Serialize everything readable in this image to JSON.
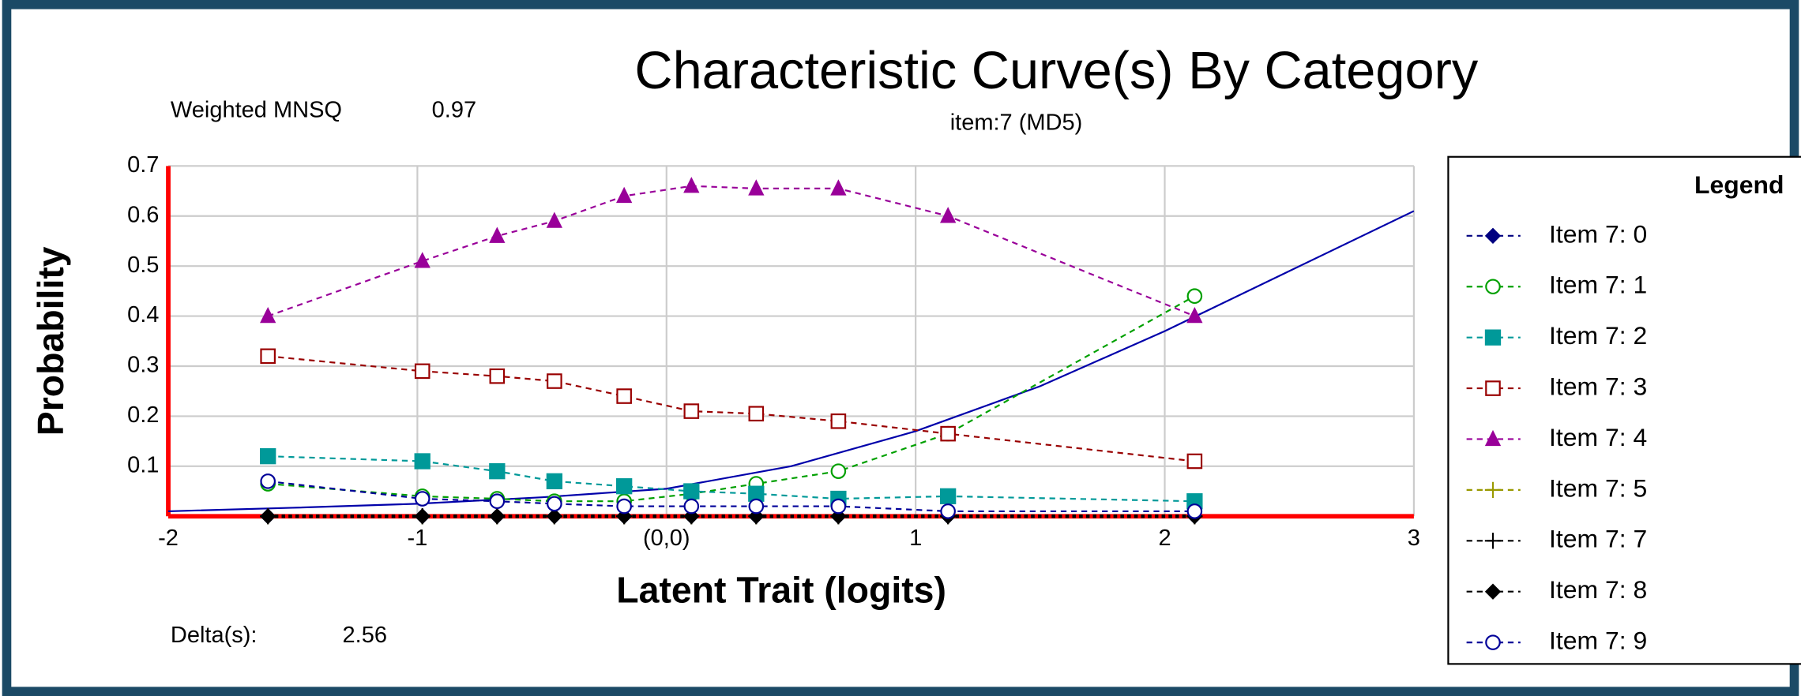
{
  "chart_data": {
    "type": "line",
    "title": "Characteristic Curve(s) By Category",
    "subtitle": "item:7 (MD5)",
    "fit_label": "Weighted MNSQ",
    "fit_value": "0.97",
    "delta_label": "Delta(s):",
    "delta_value": "2.56",
    "x_label": "Latent Trait (logits)",
    "y_label": "Probability",
    "legend_title": "Legend",
    "legend": "right",
    "grid": true,
    "xlim": [
      -2,
      3
    ],
    "ylim": [
      0,
      0.7
    ],
    "xticks": [
      -2,
      -1,
      {
        "value": 0,
        "label": "(0,0)"
      },
      1,
      2,
      3
    ],
    "yticks": [
      0.1,
      0.2,
      0.3,
      0.4,
      0.5,
      0.6,
      0.7
    ],
    "x": [
      -1.6,
      -0.98,
      -0.68,
      -0.45,
      -0.17,
      0.1,
      0.36,
      0.69,
      1.13,
      2.12
    ],
    "series": [
      {
        "name": "Item 7: 0",
        "color": "#000080",
        "marker": "diamond",
        "values": [
          0,
          0,
          0,
          0,
          0,
          0,
          0,
          0,
          0,
          0
        ]
      },
      {
        "name": "Item 7: 1",
        "color": "#00a000",
        "marker": "circle-open",
        "values": [
          0.065,
          0.04,
          0.035,
          0.03,
          0.03,
          0.045,
          0.065,
          0.09,
          0.165,
          0.44
        ]
      },
      {
        "name": "Item 7: 2",
        "color": "#009999",
        "marker": "square",
        "values": [
          0.12,
          0.11,
          0.09,
          0.07,
          0.06,
          0.05,
          0.045,
          0.035,
          0.04,
          0.03
        ]
      },
      {
        "name": "Item 7: 3",
        "color": "#990000",
        "marker": "square-open",
        "values": [
          0.32,
          0.29,
          0.28,
          0.27,
          0.24,
          0.21,
          0.205,
          0.19,
          0.165,
          0.11
        ]
      },
      {
        "name": "Item 7: 4",
        "color": "#990099",
        "marker": "triangle",
        "values": [
          0.4,
          0.51,
          0.56,
          0.59,
          0.64,
          0.66,
          0.655,
          0.655,
          0.6,
          0.4
        ]
      },
      {
        "name": "Item 7: 5",
        "color": "#999900",
        "marker": "plus",
        "values": [
          0,
          0,
          0,
          0,
          0,
          0,
          0,
          0,
          0,
          0
        ]
      },
      {
        "name": "Item 7: 7",
        "color": "#000000",
        "marker": "plus",
        "values": [
          0,
          0,
          0,
          0,
          0,
          0,
          0,
          0,
          0,
          0
        ]
      },
      {
        "name": "Item 7: 8",
        "color": "#000000",
        "marker": "diamond",
        "values": [
          0,
          0,
          0,
          0,
          0,
          0,
          0,
          0,
          0,
          0
        ]
      },
      {
        "name": "Item 7: 9",
        "color": "#000099",
        "marker": "circle-open",
        "values": [
          0.07,
          0.035,
          0.03,
          0.025,
          0.02,
          0.02,
          0.02,
          0.02,
          0.01,
          0.01
        ]
      }
    ],
    "curve": {
      "color": "#0000aa",
      "x": [
        -2,
        -1.5,
        -1,
        -0.5,
        0,
        0.5,
        1,
        1.5,
        2,
        2.5,
        3
      ],
      "values": [
        0.01,
        0.017,
        0.025,
        0.038,
        0.055,
        0.1,
        0.17,
        0.26,
        0.37,
        0.49,
        0.61
      ]
    }
  }
}
